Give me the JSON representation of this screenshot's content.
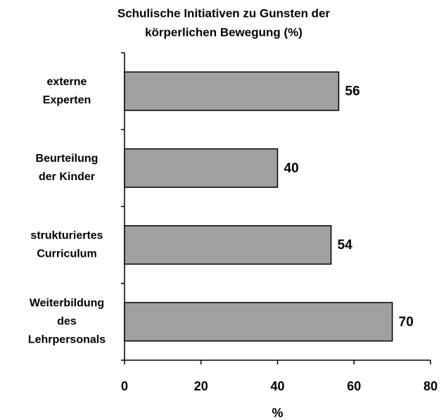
{
  "chart_data": {
    "type": "hbar",
    "title": [
      "Schulische Initiativen zu Gunsten der",
      "körperlichen Bewegung (%)"
    ],
    "categories": [
      [
        "externe",
        "Experten"
      ],
      [
        "Beurteilung",
        "der Kinder"
      ],
      [
        "strukturiertes",
        "Curriculum"
      ],
      [
        "Weiterbildung",
        "des",
        "Lehrpersonals"
      ]
    ],
    "values": [
      56,
      40,
      54,
      70
    ],
    "color": "#a0a0a0",
    "xlabel": "%",
    "xlim": [
      0,
      80
    ],
    "xticks": [
      0,
      20,
      40,
      60,
      80
    ],
    "grid": false
  }
}
